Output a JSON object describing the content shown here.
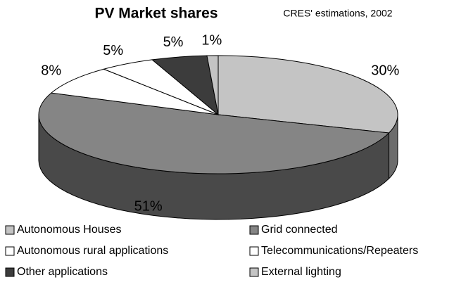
{
  "chart_data": {
    "type": "pie3d",
    "title": "PV Market shares",
    "subtitle": "CRES' estimations, 2002",
    "categories": [
      "Autonomous Houses",
      "Grid connected",
      "Autonomous rural applications",
      "Telecommunications/Repeaters",
      "Other applications",
      "External lighting"
    ],
    "values": [
      30,
      51,
      8,
      5,
      5,
      1
    ],
    "value_labels": [
      "30%",
      "51%",
      "8%",
      "5%",
      "5%",
      "1%"
    ],
    "colors": [
      "#c4c4c4",
      "#858585",
      "#ffffff",
      "#ffffff",
      "#3c3c3c",
      "#c4c4c4"
    ],
    "legend": "bottom"
  }
}
